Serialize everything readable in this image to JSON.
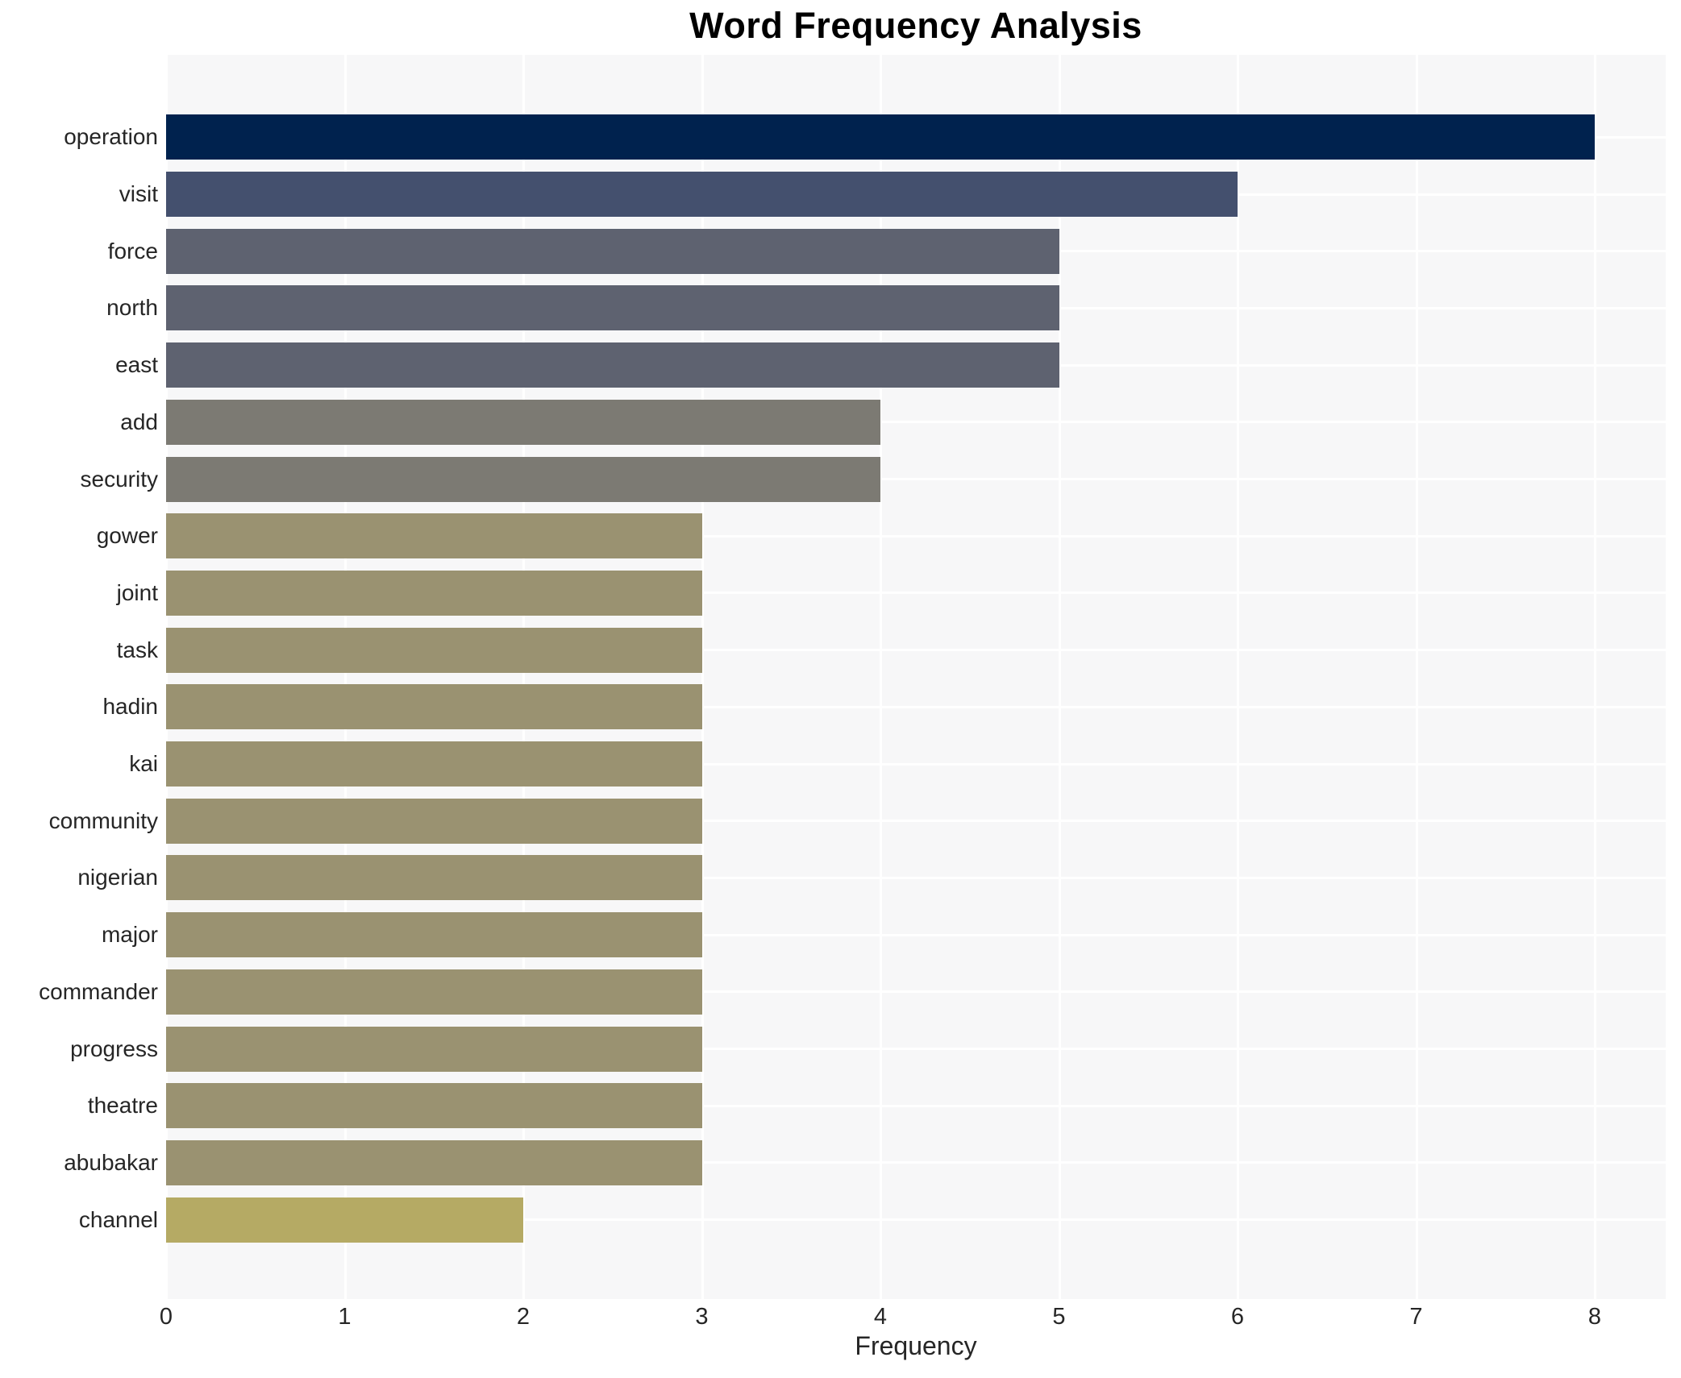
{
  "title": "Word Frequency Analysis",
  "chart_data": {
    "type": "bar",
    "orientation": "horizontal",
    "title": "Word Frequency Analysis",
    "xlabel": "Frequency",
    "ylabel": "",
    "categories": [
      "operation",
      "visit",
      "force",
      "north",
      "east",
      "add",
      "security",
      "gower",
      "joint",
      "task",
      "hadin",
      "kai",
      "community",
      "nigerian",
      "major",
      "commander",
      "progress",
      "theatre",
      "abubakar",
      "channel"
    ],
    "values": [
      8,
      6,
      5,
      5,
      5,
      4,
      4,
      3,
      3,
      3,
      3,
      3,
      3,
      3,
      3,
      3,
      3,
      3,
      3,
      2
    ],
    "bar_colors": [
      "#00224e",
      "#44506e",
      "#5e6270",
      "#5e6270",
      "#5e6270",
      "#7c7a73",
      "#7c7a73",
      "#9a9271",
      "#9a9271",
      "#9a9271",
      "#9a9271",
      "#9a9271",
      "#9a9271",
      "#9a9271",
      "#9a9271",
      "#9a9271",
      "#9a9271",
      "#9a9271",
      "#9a9271",
      "#b5aa64"
    ],
    "xlim": [
      0,
      8
    ],
    "xticks": [
      0,
      1,
      2,
      3,
      4,
      5,
      6,
      7,
      8
    ],
    "grid": true,
    "legend": false,
    "plot_bg": "#f7f7f8",
    "grid_color": "#ffffff",
    "label_color": "#262626"
  }
}
